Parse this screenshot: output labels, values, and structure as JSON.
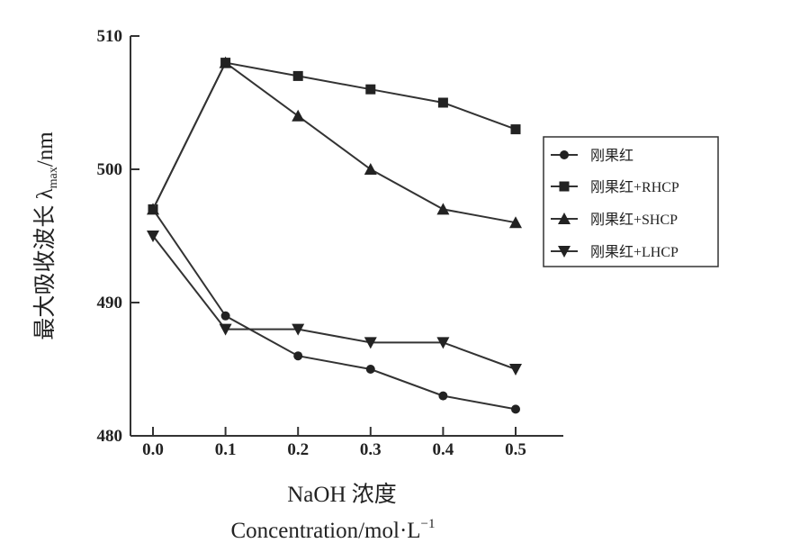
{
  "chart_data": {
    "type": "line",
    "xlabel_line1": "NaOH 浓度",
    "xlabel_line2": "Concentration/mol·L",
    "xlabel_sup": "−1",
    "ylabel_main": "最大吸收波长 λ",
    "ylabel_sub": "max",
    "ylabel_unit": "/nm",
    "x": [
      0.0,
      0.1,
      0.2,
      0.3,
      0.4,
      0.5
    ],
    "x_tick_labels": [
      "0.0",
      "0.1",
      "0.2",
      "0.3",
      "0.4",
      "0.5"
    ],
    "y_ticks": [
      480,
      490,
      500,
      510
    ],
    "y_tick_labels": [
      "480",
      "490",
      "500",
      "510"
    ],
    "ylim": [
      480,
      510
    ],
    "legend_position": "right",
    "series": [
      {
        "name": "刚果红",
        "marker": "circle",
        "values": [
          497,
          489,
          486,
          485,
          483,
          482
        ]
      },
      {
        "name": "刚果红+RHCP",
        "marker": "square",
        "values": [
          497,
          508,
          507,
          506,
          505,
          503
        ]
      },
      {
        "name": "刚果红+SHCP",
        "marker": "triangle-up",
        "values": [
          497,
          508,
          504,
          500,
          497,
          496
        ]
      },
      {
        "name": "刚果红+LHCP",
        "marker": "triangle-down",
        "values": [
          495,
          488,
          488,
          487,
          487,
          485
        ]
      }
    ]
  }
}
